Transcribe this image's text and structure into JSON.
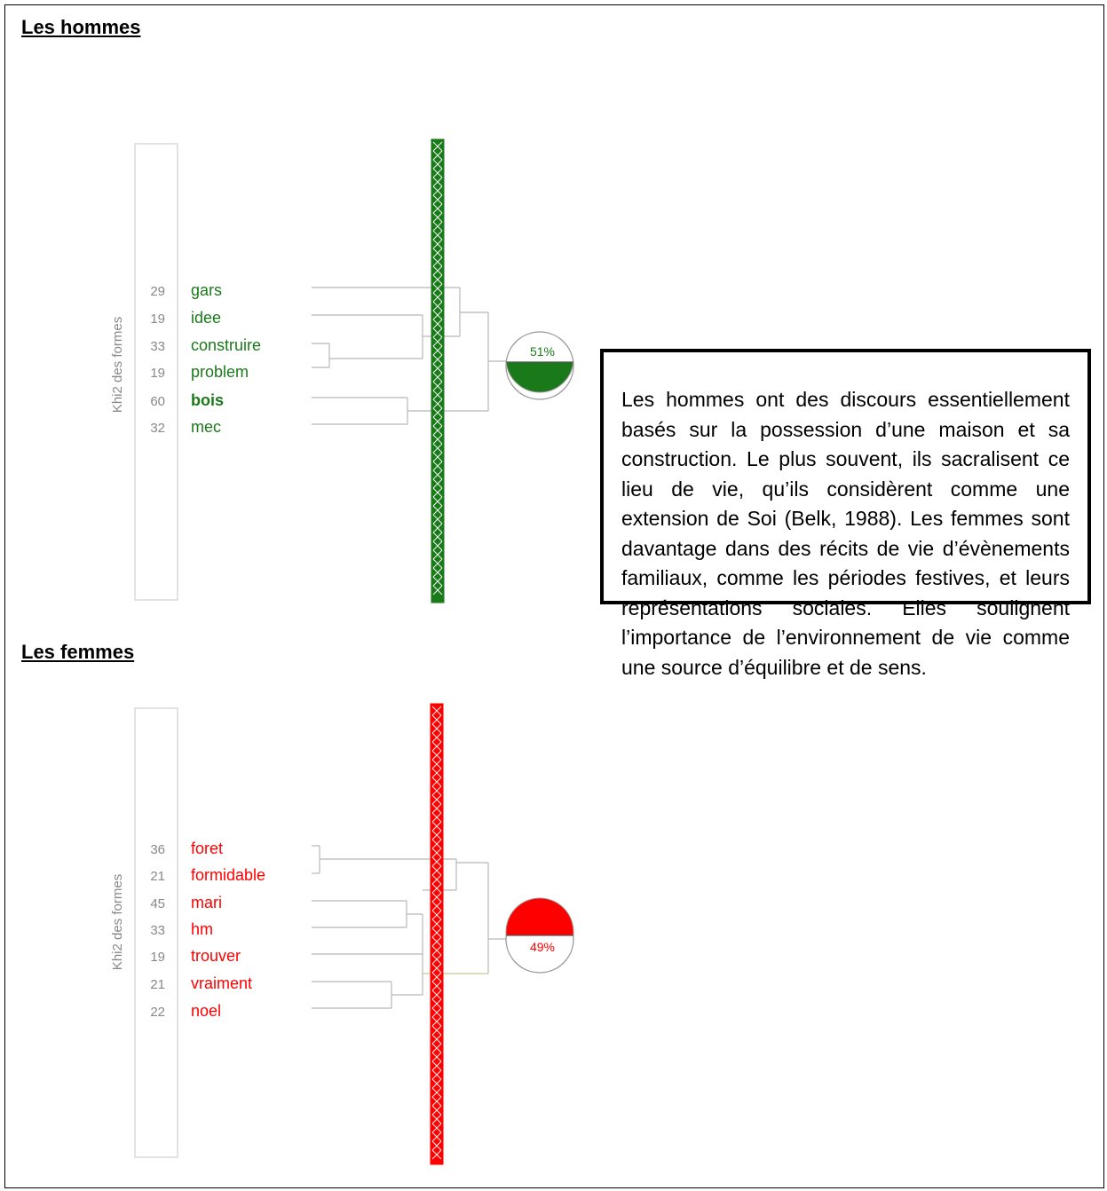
{
  "sections": [
    {
      "heading": "Les hommes",
      "axis_label": "Khi2 des formes",
      "color": "#1a7a1a",
      "percent": "51%",
      "fill_fraction": 0.51,
      "terms": [
        {
          "chi2": "29",
          "word": "gars",
          "bold": false
        },
        {
          "chi2": "19",
          "word": "idee",
          "bold": false
        },
        {
          "chi2": "33",
          "word": "construire",
          "bold": false
        },
        {
          "chi2": "19",
          "word": "problem",
          "bold": false
        },
        {
          "chi2": "60",
          "word": "bois",
          "bold": true
        },
        {
          "chi2": "32",
          "word": "mec",
          "bold": false
        }
      ]
    },
    {
      "heading": "Les femmes",
      "axis_label": "Khi2 des formes",
      "color": "#ff0000",
      "percent": "49%",
      "fill_fraction": 0.49,
      "terms": [
        {
          "chi2": "36",
          "word": "foret",
          "bold": false
        },
        {
          "chi2": "21",
          "word": "formidable",
          "bold": false
        },
        {
          "chi2": "45",
          "word": "mari",
          "bold": false
        },
        {
          "chi2": "33",
          "word": "hm",
          "bold": false
        },
        {
          "chi2": "19",
          "word": "trouver",
          "bold": false
        },
        {
          "chi2": "21",
          "word": "vraiment",
          "bold": false
        },
        {
          "chi2": "22",
          "word": "noel",
          "bold": false
        }
      ]
    }
  ],
  "textbox": {
    "text": "Les hommes ont des discours essentiellement basés sur la possession d’une maison et sa construction. Le plus souvent, ils sacralisent ce lieu de vie, qu’ils considèrent comme une extension de Soi (Belk, 1988). Les femmes sont davantage dans des récits de vie d’évènements familiaux, comme les périodes festives, et leurs représentations sociales. Elles soulignent l’importance de l’environnement de vie comme une source d’équilibre et de sens."
  }
}
